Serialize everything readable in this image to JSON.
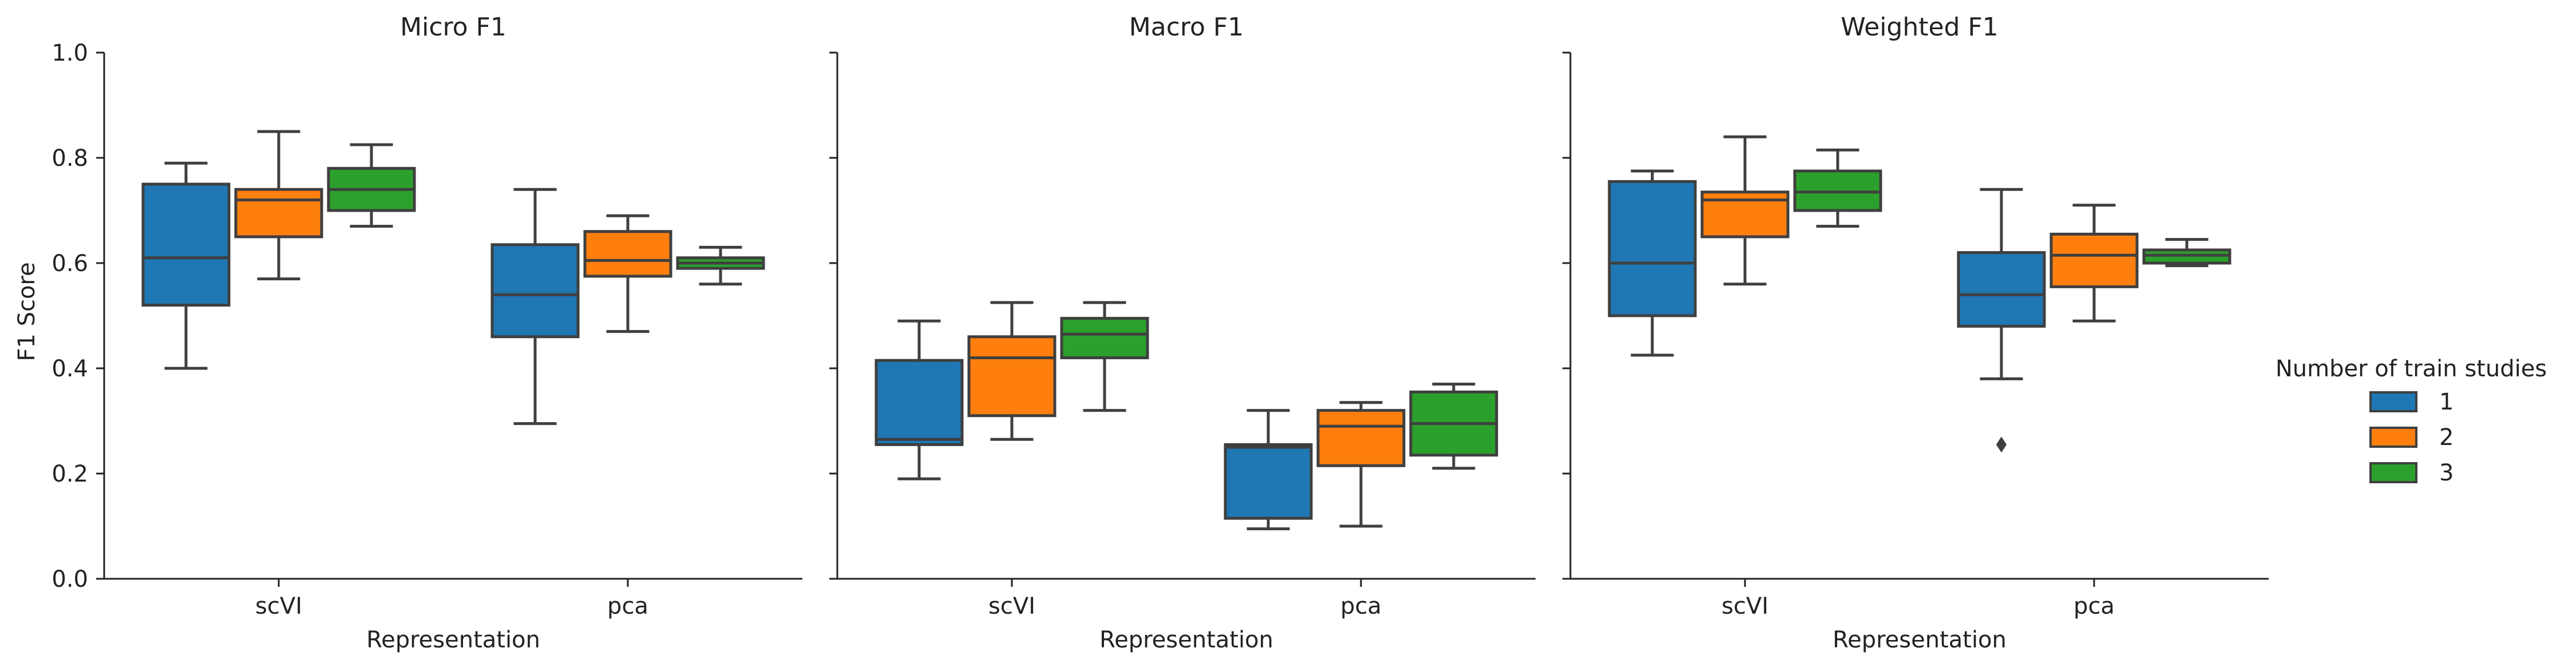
{
  "figure": {
    "ylabel": "F1 Score",
    "legend": {
      "title": "Number of train studies",
      "placement": "right",
      "entries": [
        {
          "label": "1",
          "color": "#1f77b4"
        },
        {
          "label": "2",
          "color": "#ff7f0e"
        },
        {
          "label": "3",
          "color": "#2ca02c"
        }
      ]
    }
  },
  "chart_data": [
    {
      "type": "box",
      "title": "Micro F1",
      "xlabel": "Representation",
      "ylabel": "F1 Score",
      "ylim": [
        0,
        1.0
      ],
      "yticks": [
        "0.0",
        "0.2",
        "0.4",
        "0.6",
        "0.8",
        "1.0"
      ],
      "grid": false,
      "categories": [
        "scVI",
        "pca"
      ],
      "series": [
        {
          "name": "1",
          "color": "#1f77b4",
          "boxes": [
            {
              "whislo": 0.4,
              "q1": 0.52,
              "med": 0.61,
              "q3": 0.75,
              "whishi": 0.79,
              "fliers": []
            },
            {
              "whislo": 0.295,
              "q1": 0.46,
              "med": 0.54,
              "q3": 0.635,
              "whishi": 0.74,
              "fliers": []
            }
          ]
        },
        {
          "name": "2",
          "color": "#ff7f0e",
          "boxes": [
            {
              "whislo": 0.57,
              "q1": 0.65,
              "med": 0.72,
              "q3": 0.74,
              "whishi": 0.85,
              "fliers": []
            },
            {
              "whislo": 0.47,
              "q1": 0.575,
              "med": 0.605,
              "q3": 0.66,
              "whishi": 0.69,
              "fliers": []
            }
          ]
        },
        {
          "name": "3",
          "color": "#2ca02c",
          "boxes": [
            {
              "whislo": 0.67,
              "q1": 0.7,
              "med": 0.74,
              "q3": 0.78,
              "whishi": 0.825,
              "fliers": []
            },
            {
              "whislo": 0.56,
              "q1": 0.59,
              "med": 0.6,
              "q3": 0.61,
              "whishi": 0.63,
              "fliers": []
            }
          ]
        }
      ]
    },
    {
      "type": "box",
      "title": "Macro F1",
      "xlabel": "Representation",
      "ylim": [
        0,
        1.0
      ],
      "grid": false,
      "categories": [
        "scVI",
        "pca"
      ],
      "series": [
        {
          "name": "1",
          "color": "#1f77b4",
          "boxes": [
            {
              "whislo": 0.19,
              "q1": 0.255,
              "med": 0.265,
              "q3": 0.415,
              "whishi": 0.49,
              "fliers": []
            },
            {
              "whislo": 0.095,
              "q1": 0.115,
              "med": 0.25,
              "q3": 0.255,
              "whishi": 0.32,
              "fliers": []
            }
          ]
        },
        {
          "name": "2",
          "color": "#ff7f0e",
          "boxes": [
            {
              "whislo": 0.265,
              "q1": 0.31,
              "med": 0.42,
              "q3": 0.46,
              "whishi": 0.525,
              "fliers": []
            },
            {
              "whislo": 0.1,
              "q1": 0.215,
              "med": 0.29,
              "q3": 0.32,
              "whishi": 0.335,
              "fliers": []
            }
          ]
        },
        {
          "name": "3",
          "color": "#2ca02c",
          "boxes": [
            {
              "whislo": 0.32,
              "q1": 0.42,
              "med": 0.465,
              "q3": 0.495,
              "whishi": 0.525,
              "fliers": []
            },
            {
              "whislo": 0.21,
              "q1": 0.235,
              "med": 0.295,
              "q3": 0.355,
              "whishi": 0.37,
              "fliers": []
            }
          ]
        }
      ]
    },
    {
      "type": "box",
      "title": "Weighted F1",
      "xlabel": "Representation",
      "ylim": [
        0,
        1.0
      ],
      "grid": false,
      "categories": [
        "scVI",
        "pca"
      ],
      "series": [
        {
          "name": "1",
          "color": "#1f77b4",
          "boxes": [
            {
              "whislo": 0.425,
              "q1": 0.5,
              "med": 0.6,
              "q3": 0.755,
              "whishi": 0.775,
              "fliers": []
            },
            {
              "whislo": 0.38,
              "q1": 0.48,
              "med": 0.54,
              "q3": 0.62,
              "whishi": 0.74,
              "fliers": [
                0.255
              ]
            }
          ]
        },
        {
          "name": "2",
          "color": "#ff7f0e",
          "boxes": [
            {
              "whislo": 0.56,
              "q1": 0.65,
              "med": 0.72,
              "q3": 0.735,
              "whishi": 0.84,
              "fliers": []
            },
            {
              "whislo": 0.49,
              "q1": 0.555,
              "med": 0.615,
              "q3": 0.655,
              "whishi": 0.71,
              "fliers": []
            }
          ]
        },
        {
          "name": "3",
          "color": "#2ca02c",
          "boxes": [
            {
              "whislo": 0.67,
              "q1": 0.7,
              "med": 0.735,
              "q3": 0.775,
              "whishi": 0.815,
              "fliers": []
            },
            {
              "whislo": 0.595,
              "q1": 0.6,
              "med": 0.615,
              "q3": 0.625,
              "whishi": 0.645,
              "fliers": []
            }
          ]
        }
      ]
    }
  ]
}
